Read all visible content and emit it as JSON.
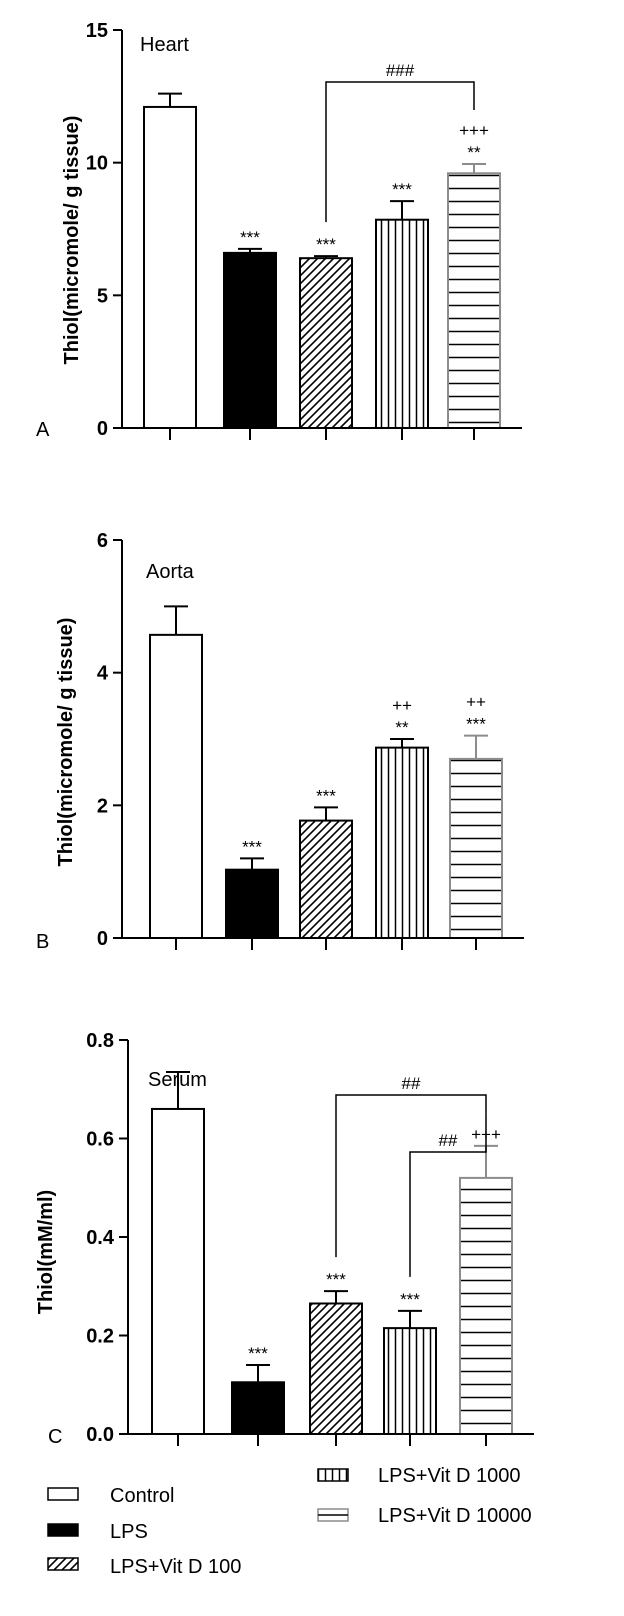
{
  "colors": {
    "axis": "#000000",
    "lps_fill": "#000000",
    "gray_bar": "#8c8c8c"
  },
  "legend": {
    "items": [
      {
        "label": "Control",
        "pattern": "white"
      },
      {
        "label": "LPS",
        "pattern": "solid"
      },
      {
        "label": "LPS+Vit D 100",
        "pattern": "diagonal"
      },
      {
        "label": "LPS+Vit D 1000",
        "pattern": "vertical"
      },
      {
        "label": "LPS+Vit D 10000",
        "pattern": "horizontal"
      }
    ]
  },
  "chart_data": [
    {
      "type": "bar",
      "panel_letter": "A",
      "title": "Heart",
      "ylabel": "Thiol(micromole/ g tissue)",
      "ylim": [
        0,
        15
      ],
      "yticks": [
        0,
        5,
        10,
        15
      ],
      "series": [
        {
          "name": "Control",
          "value": 12.1,
          "error": 0.5,
          "sig": []
        },
        {
          "name": "LPS",
          "value": 6.6,
          "error": 0.15,
          "sig": [
            "***"
          ]
        },
        {
          "name": "LPS+Vit D 100",
          "value": 6.4,
          "error": 0.08,
          "sig": [
            "***"
          ]
        },
        {
          "name": "LPS+Vit D 1000",
          "value": 7.85,
          "error": 0.7,
          "sig": [
            "***"
          ]
        },
        {
          "name": "LPS+Vit D 10000",
          "value": 9.6,
          "error": 0.35,
          "sig": [
            "+++",
            "**"
          ]
        }
      ],
      "brackets": [
        {
          "from": 2,
          "to": 4,
          "label": "###"
        }
      ]
    },
    {
      "type": "bar",
      "panel_letter": "B",
      "title": "Aorta",
      "ylabel": "Thiol(micromole/ g tissue)",
      "ylim": [
        0,
        6
      ],
      "yticks": [
        0,
        2,
        4,
        6
      ],
      "series": [
        {
          "name": "Control",
          "value": 4.57,
          "error": 0.43,
          "sig": []
        },
        {
          "name": "LPS",
          "value": 1.03,
          "error": 0.17,
          "sig": [
            "***"
          ]
        },
        {
          "name": "LPS+Vit D 100",
          "value": 1.77,
          "error": 0.2,
          "sig": [
            "***"
          ]
        },
        {
          "name": "LPS+Vit D 1000",
          "value": 2.87,
          "error": 0.13,
          "sig": [
            "++",
            "**"
          ]
        },
        {
          "name": "LPS+Vit D 10000",
          "value": 2.7,
          "error": 0.35,
          "sig": [
            "++",
            "***"
          ]
        }
      ],
      "brackets": []
    },
    {
      "type": "bar",
      "panel_letter": "C",
      "title": "Serum",
      "ylabel": "Thiol(mM/ml)",
      "ylim": [
        0,
        0.8
      ],
      "yticks": [
        "0.0",
        "0.2",
        "0.4",
        "0.6",
        "0.8"
      ],
      "series": [
        {
          "name": "Control",
          "value": 0.66,
          "error": 0.075,
          "sig": []
        },
        {
          "name": "LPS",
          "value": 0.105,
          "error": 0.035,
          "sig": [
            "***"
          ]
        },
        {
          "name": "LPS+Vit D 100",
          "value": 0.265,
          "error": 0.025,
          "sig": [
            "***"
          ]
        },
        {
          "name": "LPS+Vit D 1000",
          "value": 0.215,
          "error": 0.035,
          "sig": [
            "***"
          ]
        },
        {
          "name": "LPS+Vit D 10000",
          "value": 0.52,
          "error": 0.065,
          "sig": [
            "+++"
          ]
        }
      ],
      "brackets": [
        {
          "from": 2,
          "to": 4,
          "label": "##"
        },
        {
          "from": 3,
          "to": 4,
          "label": "##"
        }
      ]
    }
  ]
}
